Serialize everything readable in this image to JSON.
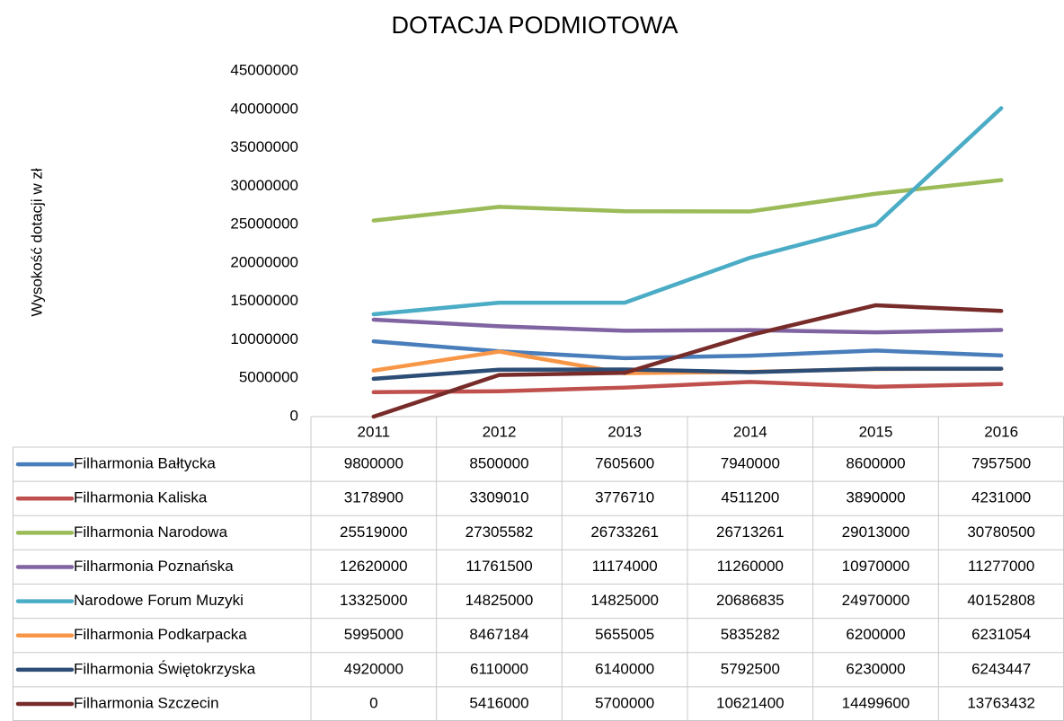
{
  "chart_data": {
    "type": "line",
    "title": "DOTACJA PODMIOTOWA",
    "y_label": "Wysokość dotacji w zł",
    "categories": [
      "2011",
      "2012",
      "2013",
      "2014",
      "2015",
      "2016"
    ],
    "ylim": [
      0,
      45000000
    ],
    "yticks": [
      0,
      5000000,
      10000000,
      15000000,
      20000000,
      25000000,
      30000000,
      35000000,
      40000000,
      45000000
    ],
    "grid": false,
    "series": [
      {
        "name": "Filharmonia Bałtycka",
        "color": "#4a7ebb",
        "values": [
          9800000,
          8500000,
          7605600,
          7940000,
          8600000,
          7957500
        ]
      },
      {
        "name": "Filharmonia Kaliska",
        "color": "#c0504d",
        "values": [
          3178900,
          3309010,
          3776710,
          4511200,
          3890000,
          4231000
        ]
      },
      {
        "name": "Filharmonia Narodowa",
        "color": "#9bbb59",
        "values": [
          25519000,
          27305582,
          26733261,
          26713261,
          29013000,
          30780500
        ]
      },
      {
        "name": "Filharmonia Poznańska",
        "color": "#8064a2",
        "values": [
          12620000,
          11761500,
          11174000,
          11260000,
          10970000,
          11277000
        ]
      },
      {
        "name": "Narodowe Forum Muzyki",
        "color": "#4bacc6",
        "values": [
          13325000,
          14825000,
          14825000,
          20686835,
          24970000,
          40152808
        ]
      },
      {
        "name": "Filharmonia Podkarpacka",
        "color": "#f79646",
        "values": [
          5995000,
          8467184,
          5655005,
          5835282,
          6200000,
          6231054
        ]
      },
      {
        "name": "Filharmonia Świętokrzyska",
        "color": "#2c4d75",
        "values": [
          4920000,
          6110000,
          6140000,
          5792500,
          6230000,
          6243447
        ]
      },
      {
        "name": "Filharmonia Szczecin",
        "color": "#772c2a",
        "values": [
          0,
          5416000,
          5700000,
          10621400,
          14499600,
          13763432
        ]
      }
    ]
  }
}
